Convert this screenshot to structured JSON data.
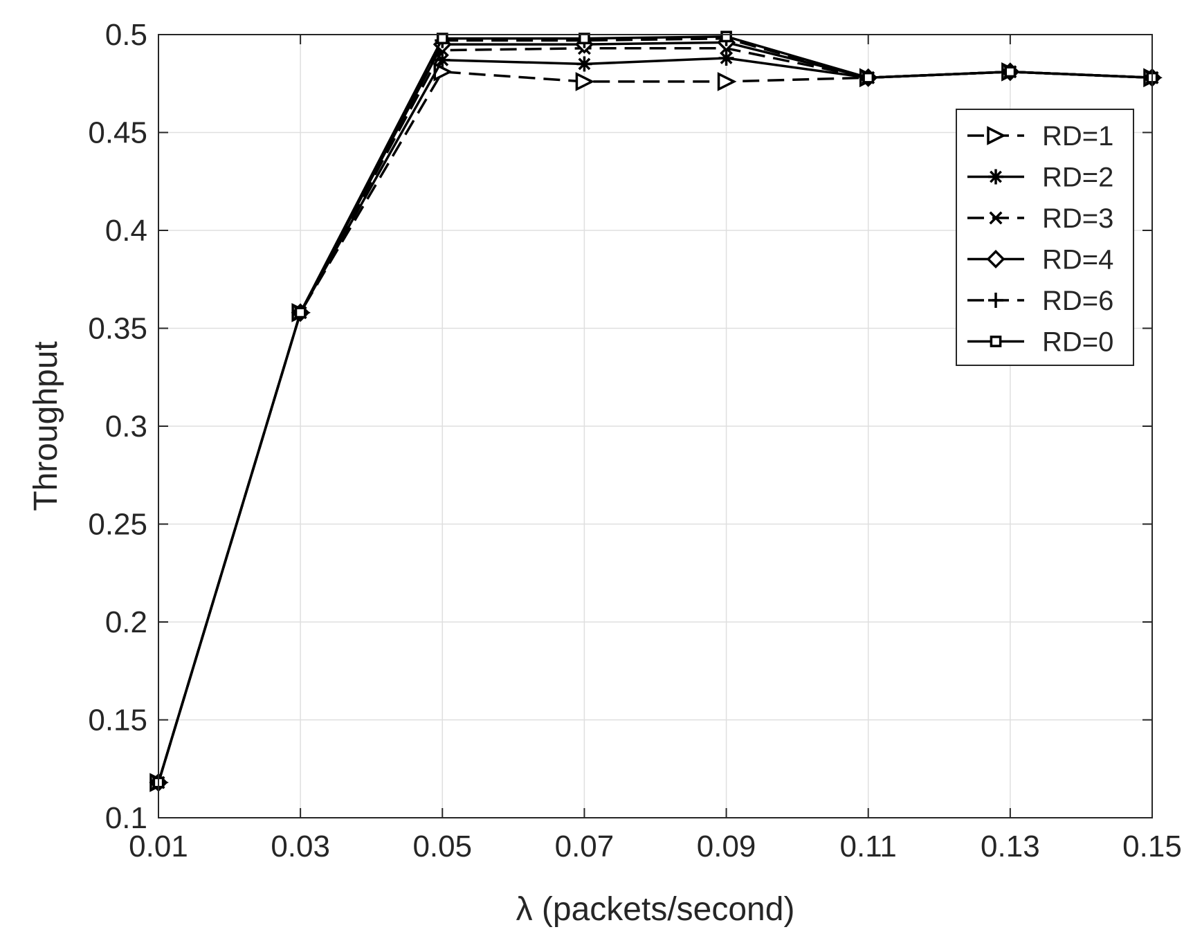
{
  "chart_data": {
    "type": "line",
    "title": "",
    "xlabel": "λ (packets/second)",
    "ylabel": "Throughput",
    "xlim": [
      0.01,
      0.15
    ],
    "ylim": [
      0.1,
      0.5
    ],
    "x": [
      0.01,
      0.03,
      0.05,
      0.07,
      0.09,
      0.11,
      0.13,
      0.15
    ],
    "x_ticks": [
      "0.01",
      "0.03",
      "0.05",
      "0.07",
      "0.09",
      "0.11",
      "0.13",
      "0.15"
    ],
    "y_ticks": [
      "0.1",
      "0.15",
      "0.2",
      "0.25",
      "0.3",
      "0.35",
      "0.4",
      "0.45",
      "0.5"
    ],
    "y_tick_values": [
      0.1,
      0.15,
      0.2,
      0.25,
      0.3,
      0.35,
      0.4,
      0.45,
      0.5
    ],
    "grid": true,
    "legend_position": "top-right",
    "line_color": "#000000",
    "grid_color": "#dfdfdf",
    "series": [
      {
        "name": "RD=1",
        "marker": "triangle-right",
        "dash": "dashed",
        "values": [
          0.118,
          0.358,
          0.481,
          0.476,
          0.476,
          0.478,
          0.481,
          0.478
        ]
      },
      {
        "name": "RD=2",
        "marker": "asterisk",
        "dash": "solid",
        "values": [
          0.118,
          0.358,
          0.487,
          0.485,
          0.488,
          0.478,
          0.481,
          0.478
        ]
      },
      {
        "name": "RD=3",
        "marker": "x",
        "dash": "dashed",
        "values": [
          0.118,
          0.358,
          0.492,
          0.493,
          0.493,
          0.478,
          0.481,
          0.478
        ]
      },
      {
        "name": "RD=4",
        "marker": "diamond",
        "dash": "solid",
        "values": [
          0.118,
          0.358,
          0.495,
          0.495,
          0.496,
          0.478,
          0.481,
          0.478
        ]
      },
      {
        "name": "RD=6",
        "marker": "plus",
        "dash": "dashed",
        "values": [
          0.118,
          0.358,
          0.497,
          0.497,
          0.498,
          0.478,
          0.481,
          0.478
        ]
      },
      {
        "name": "RD=0",
        "marker": "square",
        "dash": "solid",
        "values": [
          0.118,
          0.358,
          0.498,
          0.498,
          0.499,
          0.478,
          0.481,
          0.478
        ]
      }
    ]
  }
}
